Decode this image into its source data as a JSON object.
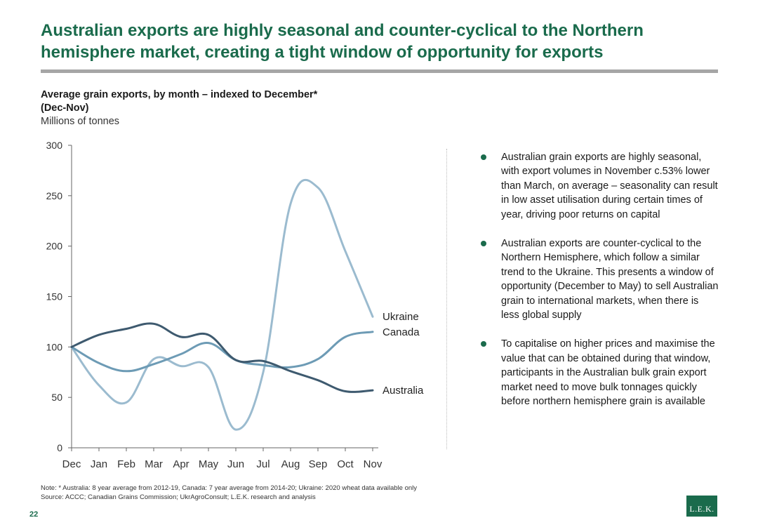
{
  "title": "Australian exports are highly seasonal and counter-cyclical to the Northern hemisphere market, creating a tight window of opportunity for exports",
  "chart_heading": {
    "title": "Average grain exports, by month – indexed to December*",
    "subtitle": "(Dec-Nov)",
    "units": "Millions of tonnes"
  },
  "chart_data": {
    "type": "line",
    "title": "Average grain exports, by month – indexed to December*",
    "subtitle": "(Dec-Nov)",
    "ylabel": "Millions of tonnes",
    "xlabel": "",
    "categories": [
      "Dec",
      "Jan",
      "Feb",
      "Mar",
      "Apr",
      "May",
      "Jun",
      "Jul",
      "Aug",
      "Sep",
      "Oct",
      "Nov"
    ],
    "ylim": [
      0,
      300
    ],
    "yticks": [
      0,
      50,
      100,
      150,
      200,
      250,
      300
    ],
    "grid": false,
    "legend": "line-end labels",
    "series": [
      {
        "name": "Ukraine",
        "color": "#9bbbcf",
        "values": [
          100,
          62,
          45,
          88,
          81,
          80,
          18,
          75,
          242,
          258,
          195,
          130
        ]
      },
      {
        "name": "Canada",
        "color": "#6d9bb5",
        "values": [
          100,
          84,
          76,
          83,
          93,
          104,
          87,
          82,
          80,
          88,
          110,
          115
        ]
      },
      {
        "name": "Australia",
        "color": "#3e5a6f",
        "values": [
          100,
          112,
          118,
          123,
          110,
          112,
          87,
          86,
          76,
          67,
          56,
          57
        ]
      }
    ]
  },
  "bullets": [
    "Australian grain exports are highly seasonal, with export volumes in November c.53% lower than March, on average – seasonality can result in low asset utilisation during certain times of year, driving poor returns on capital",
    "Australian exports are counter-cyclical to the Northern Hemisphere, which follow a similar trend to the Ukraine. This presents a window of opportunity (December to May) to sell Australian grain to international markets, when there is less global supply",
    "To capitalise on higher prices and maximise the value that can be obtained during that window, participants in the Australian bulk grain export market need to move bulk tonnages quickly before northern hemisphere grain is available"
  ],
  "note": "Note:    * Australia: 8 year average from 2012-19, Canada: 7 year average from 2014-20; Ukraine: 2020 wheat data available only",
  "source": "Source:  ACCC; Canadian Grains Commission; UkrAgroConsult; L.E.K. research and analysis",
  "page_number": "22",
  "logo_text": "L.E.K.",
  "colors": {
    "accent": "#1a6b4c",
    "rule": "#a6a6a6"
  }
}
